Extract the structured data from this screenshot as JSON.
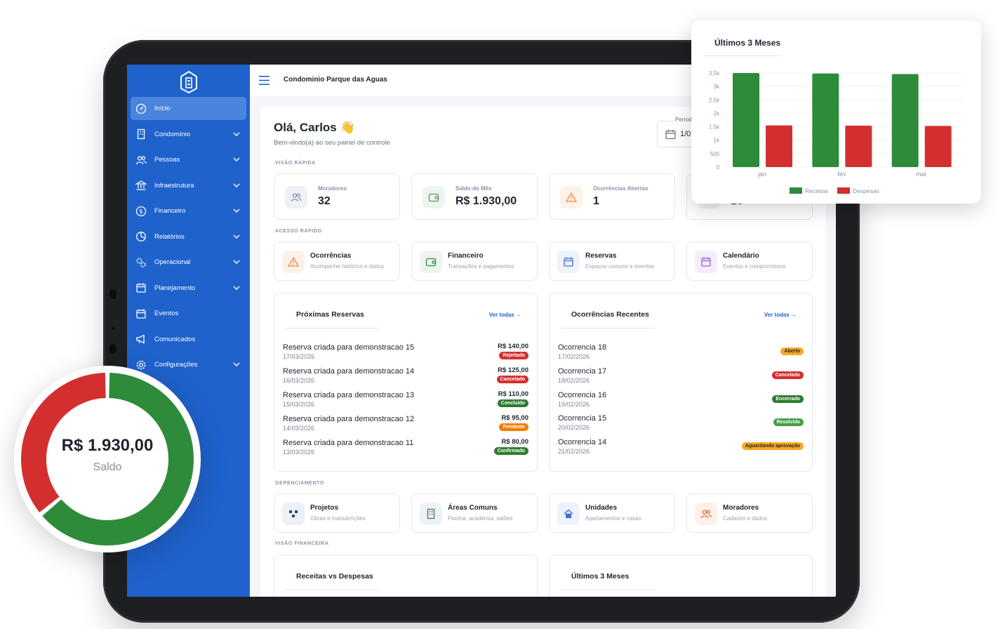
{
  "app": {
    "condominio": "Condominio Parque das Aguas"
  },
  "sidebar": {
    "items": [
      {
        "label": "Início",
        "icon": "dashboard-icon",
        "active": true,
        "expandable": false
      },
      {
        "label": "Condomínio",
        "icon": "building-icon",
        "expandable": true
      },
      {
        "label": "Pessoas",
        "icon": "people-icon",
        "expandable": true
      },
      {
        "label": "Infraestrutura",
        "icon": "bank-icon",
        "expandable": true
      },
      {
        "label": "Financeiro",
        "icon": "dollar-icon",
        "expandable": true
      },
      {
        "label": "Relatórios",
        "icon": "pie-chart-icon",
        "expandable": true
      },
      {
        "label": "Operacional",
        "icon": "gears-icon",
        "expandable": true
      },
      {
        "label": "Planejamento",
        "icon": "calendar-icon",
        "expandable": true
      },
      {
        "label": "Eventos",
        "icon": "calendar-icon",
        "expandable": false
      },
      {
        "label": "Comunicados",
        "icon": "megaphone-icon",
        "expandable": false
      },
      {
        "label": "Configurações",
        "icon": "gear-icon",
        "expandable": true
      }
    ]
  },
  "header": {
    "greeting": "Olá, Carlos 👋",
    "subtitle": "Bem-vindo(a) ao seu painel de controle",
    "period_label": "Período",
    "period_value": "1/0"
  },
  "sections": {
    "quick_view": "VISÃO RÁPIDA",
    "quick_access": "ACESSO RÁPIDO",
    "management": "GERENCIAMENTO",
    "financial_view": "VISÃO FINANCEIRA"
  },
  "stats": [
    {
      "label": "Moradores",
      "value": "32",
      "icon": "people-icon"
    },
    {
      "label": "Saldo do Mês",
      "value": "R$ 1.930,00",
      "icon": "wallet-icon"
    },
    {
      "label": "Ocorrências Abertas",
      "value": "1",
      "icon": "warning-icon"
    },
    {
      "label": "",
      "value": "10",
      "icon": "unit-icon"
    }
  ],
  "quick_access": [
    {
      "title": "Ocorrências",
      "subtitle": "Acompanhe histórico e status",
      "icon": "warning-icon"
    },
    {
      "title": "Financeiro",
      "subtitle": "Transações e pagamentos",
      "icon": "wallet-icon"
    },
    {
      "title": "Reservas",
      "subtitle": "Espaços comuns e eventos",
      "icon": "calendar-icon"
    },
    {
      "title": "Calendário",
      "subtitle": "Eventos e compromissos",
      "icon": "calendar-icon"
    }
  ],
  "reservas": {
    "title": "Próximas Reservas",
    "link": "Ver todas →",
    "rows": [
      {
        "title": "Reserva criada para demonstracao 15",
        "date": "17/03/2026",
        "value": "R$ 140,00",
        "status": "Rejeitado",
        "color": "#d32f2f"
      },
      {
        "title": "Reserva criada para demonstracao 14",
        "date": "16/03/2026",
        "value": "R$ 125,00",
        "status": "Cancelado",
        "color": "#d32f2f"
      },
      {
        "title": "Reserva criada para demonstracao 13",
        "date": "15/03/2026",
        "value": "R$ 110,00",
        "status": "Concluído",
        "color": "#2e7d32"
      },
      {
        "title": "Reserva criada para demonstracao 12",
        "date": "14/03/2026",
        "value": "R$ 95,00",
        "status": "Pendente",
        "color": "#f57c00"
      },
      {
        "title": "Reserva criada para demonstracao 11",
        "date": "13/03/2026",
        "value": "R$ 80,00",
        "status": "Confirmado",
        "color": "#2e7d32"
      }
    ]
  },
  "ocorrencias": {
    "title": "Ocorrências Recentes",
    "link": "Ver todas →",
    "rows": [
      {
        "title": "Ocorrencia 18",
        "date": "17/02/2026",
        "status": "Aberto",
        "color": "#f9a825",
        "text_color": "#1f2430"
      },
      {
        "title": "Ocorrencia 17",
        "date": "18/02/2026",
        "status": "Cancelado",
        "color": "#d32f2f",
        "text_color": "#ffffff"
      },
      {
        "title": "Ocorrencia 16",
        "date": "19/02/2026",
        "status": "Encerrado",
        "color": "#2e7d32",
        "text_color": "#ffffff"
      },
      {
        "title": "Ocorrencia 15",
        "date": "20/02/2026",
        "status": "Resolvido",
        "color": "#43a047",
        "text_color": "#ffffff"
      },
      {
        "title": "Ocorrencia 14",
        "date": "21/02/2026",
        "status": "Aguardando aprovação",
        "color": "#f9a825",
        "text_color": "#1f2430"
      }
    ]
  },
  "management": [
    {
      "title": "Projetos",
      "subtitle": "Obras e manutenções",
      "icon": "projects-icon"
    },
    {
      "title": "Áreas Comuns",
      "subtitle": "Piscina, academia, salões",
      "icon": "building-icon"
    },
    {
      "title": "Unidades",
      "subtitle": "Apartamentos e casas",
      "icon": "home-icon"
    },
    {
      "title": "Moradores",
      "subtitle": "Cadastro e dados",
      "icon": "people-icon"
    }
  ],
  "financial_panels": {
    "left": "Receitas vs Despesas",
    "right": "Últimos 3 Meses"
  },
  "chart_data": [
    {
      "type": "bar",
      "title": "Últimos 3 Meses",
      "categories": [
        "jan",
        "fev",
        "mar"
      ],
      "series": [
        {
          "name": "Receitas",
          "values": [
            3500,
            3480,
            3460
          ],
          "color": "#2e8b3a"
        },
        {
          "name": "Despesas",
          "values": [
            1550,
            1540,
            1530
          ],
          "color": "#d32f2f"
        }
      ],
      "yticks": [
        "0",
        "500",
        "1k",
        "1.5k",
        "2k",
        "2.5k",
        "3k",
        "3.5k"
      ],
      "ylim": [
        0,
        3500
      ],
      "legend": "bottom",
      "grid": true
    },
    {
      "type": "pie",
      "title": "",
      "center_value": "R$ 1.930,00",
      "center_label": "Saldo",
      "slices": [
        {
          "name": "Receitas",
          "value": 64,
          "color": "#2e8b3a"
        },
        {
          "name": "Despesas",
          "value": 36,
          "color": "#d32f2f"
        }
      ]
    }
  ]
}
